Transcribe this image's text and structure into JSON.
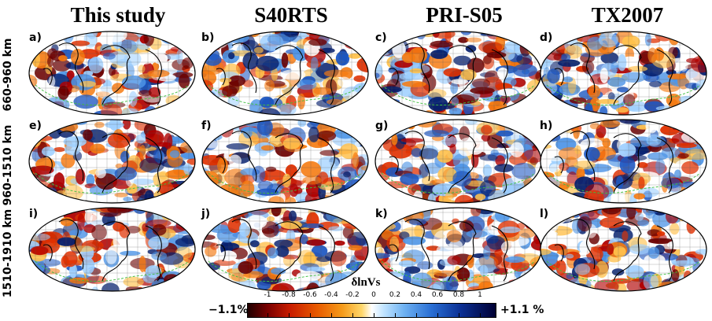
{
  "columns": [
    {
      "title": "This study"
    },
    {
      "title": "S40RTS"
    },
    {
      "title": "PRI-S05"
    },
    {
      "title": "TX2007"
    }
  ],
  "rows": [
    {
      "label": "660-960 km",
      "panels": [
        "a)",
        "b)",
        "c)",
        "d)"
      ]
    },
    {
      "label": "960-1510 km",
      "panels": [
        "e)",
        "f)",
        "g)",
        "h)"
      ]
    },
    {
      "label": "1510-1910 km",
      "panels": [
        "i)",
        "j)",
        "k)",
        "l)"
      ]
    }
  ],
  "colorbar": {
    "title": "δlnVs",
    "min_label": "−1.1%",
    "max_label": "+1.1 %",
    "ticks": [
      "-1",
      "-0.8",
      "-0.6",
      "-0.4",
      "-0.2",
      "0",
      "0.2",
      "0.4",
      "0.6",
      "0.8",
      "1"
    ],
    "colors": {
      "slow": "#c81c00",
      "neutral": "#ffffff",
      "fast": "#0b2f93"
    }
  }
}
